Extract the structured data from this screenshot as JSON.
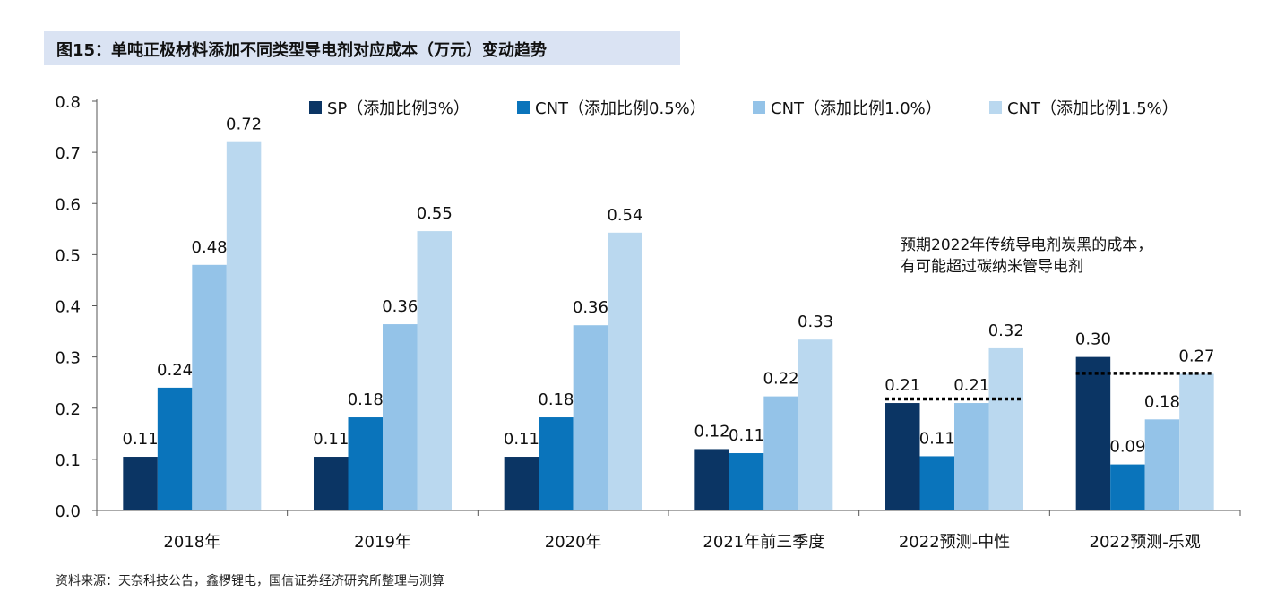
{
  "title": "图15：单吨正极材料添加不同类型导电剂对应成本（万元）变动趋势",
  "source": "资料来源：天奈科技公告，鑫椤锂电，国信证券经济研究所整理与测算",
  "annotation": [
    "预期2022年传统导电剂炭黑的成本，",
    "有可能超过碳纳米管导电剂"
  ],
  "chart_data": {
    "type": "bar",
    "categories": [
      "2018年",
      "2019年",
      "2020年",
      "2021年前三季度",
      "2022预测-中性",
      "2022预测-乐观"
    ],
    "series": [
      {
        "name": "SP（添加比例3%）",
        "color": "#0b3564",
        "values": [
          0.105,
          0.105,
          0.105,
          0.12,
          0.21,
          0.3
        ],
        "labels": [
          "0.11",
          "0.11",
          "0.11",
          "0.12",
          "0.21",
          "0.30"
        ]
      },
      {
        "name": "CNT（添加比例0.5%）",
        "color": "#0a74bb",
        "values": [
          0.24,
          0.182,
          0.182,
          0.112,
          0.106,
          0.09
        ],
        "labels": [
          "0.24",
          "0.18",
          "0.18",
          "0.11",
          "0.11",
          "0.09"
        ]
      },
      {
        "name": "CNT（添加比例1.0%）",
        "color": "#94c3e8",
        "values": [
          0.48,
          0.364,
          0.362,
          0.223,
          0.21,
          0.178
        ],
        "labels": [
          "0.48",
          "0.36",
          "0.36",
          "0.22",
          "0.21",
          "0.18"
        ]
      },
      {
        "name": "CNT（添加比例1.5%）",
        "color": "#bad8ef",
        "values": [
          0.72,
          0.546,
          0.543,
          0.334,
          0.317,
          0.267
        ],
        "labels": [
          "0.72",
          "0.55",
          "0.54",
          "0.33",
          "0.32",
          "0.27"
        ]
      }
    ],
    "ylim": [
      0,
      0.8
    ],
    "yticks": [
      "0.0",
      "0.1",
      "0.2",
      "0.3",
      "0.4",
      "0.5",
      "0.6",
      "0.7",
      "0.8"
    ],
    "reference_lines": [
      {
        "category": "2022预测-中性",
        "value": 0.218
      },
      {
        "category": "2022预测-乐观",
        "value": 0.268
      }
    ],
    "legend_position": "top",
    "grid": false
  }
}
